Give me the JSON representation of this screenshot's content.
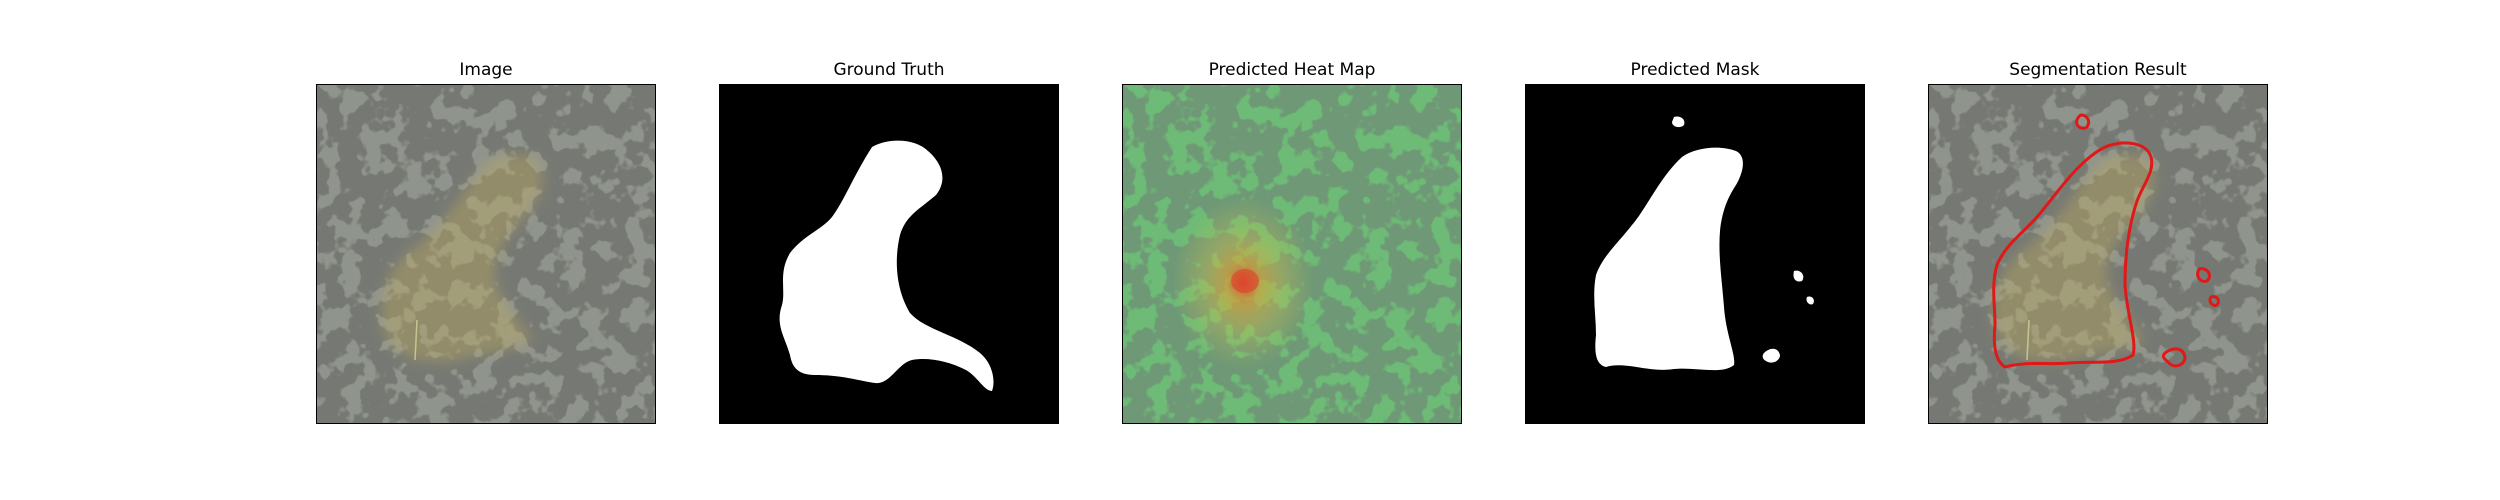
{
  "figure": {
    "panels": [
      {
        "title": "Image"
      },
      {
        "title": "Ground Truth"
      },
      {
        "title": "Predicted Heat Map"
      },
      {
        "title": "Predicted Mask"
      },
      {
        "title": "Segmentation Result"
      }
    ]
  },
  "colors": {
    "background": "#ffffff",
    "granite_base": "#8f948c",
    "granite_dark": "#2e302c",
    "defect_highlight": "#c9b25a",
    "mask_fill": "#ffffff",
    "mask_bg": "#000000",
    "heatmap_green": "#5fae6a",
    "heatmap_hot": "#e0412a",
    "contour": "#e01818"
  }
}
